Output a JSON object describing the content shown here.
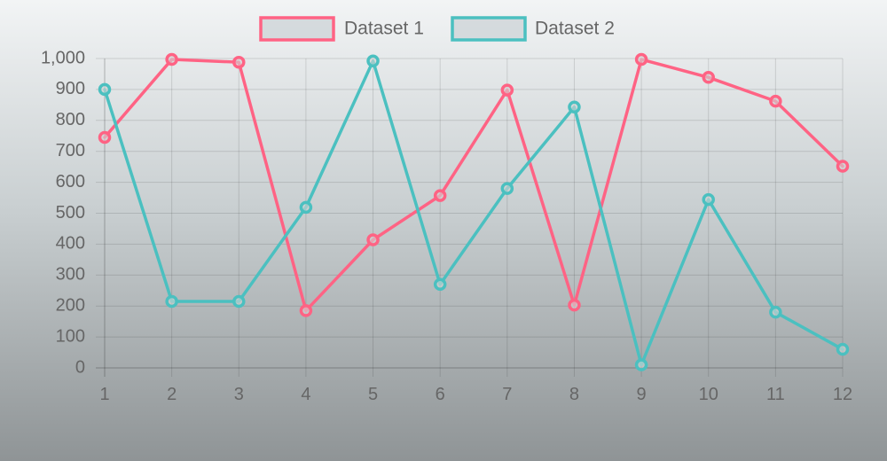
{
  "chart_data": {
    "type": "line",
    "title": "",
    "xlabel": "",
    "ylabel": "",
    "x": [
      1,
      2,
      3,
      4,
      5,
      6,
      7,
      8,
      9,
      10,
      11,
      12
    ],
    "x_tick_labels": [
      "1",
      "2",
      "3",
      "4",
      "5",
      "6",
      "7",
      "8",
      "9",
      "10",
      "11",
      "12"
    ],
    "y_tick_labels": [
      "0",
      "100",
      "200",
      "300",
      "400",
      "500",
      "600",
      "700",
      "800",
      "900",
      "1,000"
    ],
    "ylim": [
      0,
      1000
    ],
    "grid": true,
    "legend_position": "top",
    "series": [
      {
        "name": "Dataset 1",
        "color": "#ff6384",
        "values": [
          745,
          997,
          988,
          185,
          414,
          557,
          898,
          203,
          997,
          939,
          862,
          652
        ]
      },
      {
        "name": "Dataset 2",
        "color": "#4bc0c0",
        "values": [
          900,
          215,
          215,
          519,
          992,
          270,
          580,
          843,
          10,
          544,
          180,
          60
        ]
      }
    ]
  }
}
